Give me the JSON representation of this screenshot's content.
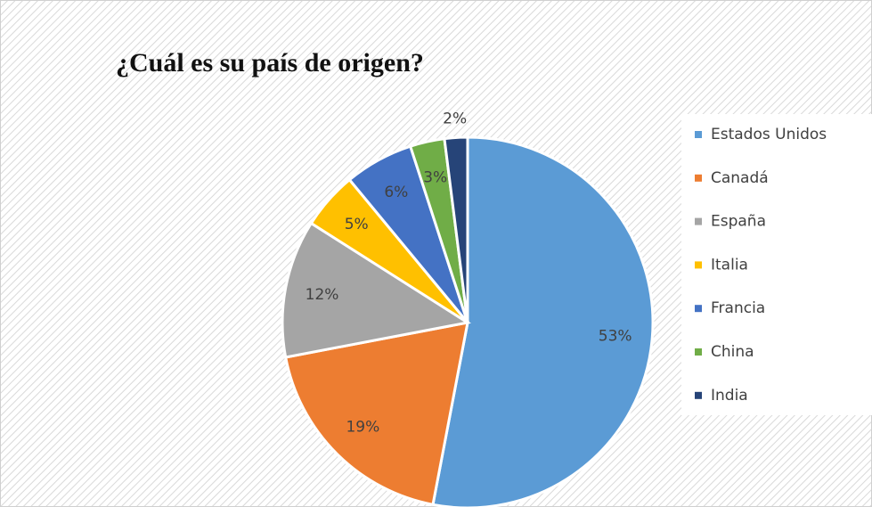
{
  "chart_data": {
    "type": "pie",
    "title": "¿Cuál es su país de origen?",
    "categories": [
      "Estados Unidos",
      "Canadá",
      "España",
      "Italia",
      "Francia",
      "China",
      "India"
    ],
    "values": [
      53,
      19,
      12,
      5,
      6,
      3,
      2
    ],
    "value_labels": [
      "53%",
      "19%",
      "12%",
      "5%",
      "6%",
      "3%",
      "2%"
    ],
    "colors": [
      "#5b9bd5",
      "#ed7d31",
      "#a5a5a5",
      "#ffc000",
      "#4472c4",
      "#70ad47",
      "#264478"
    ],
    "legend": "right"
  }
}
